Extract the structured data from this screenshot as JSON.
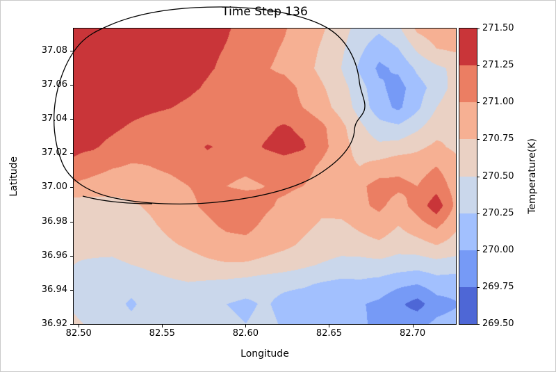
{
  "figure": {
    "title": "Time Step 136",
    "xlabel": "Longitude",
    "ylabel": "Latitude",
    "colorbar_label": "Temperature(K)"
  },
  "chart_data": {
    "type": "heatmap",
    "title": "Time Step 136",
    "xlabel": "Longitude",
    "ylabel": "Latitude",
    "colorbar_label": "Temperature(K)",
    "x_range": [
      82.497,
      82.726
    ],
    "y_range": [
      36.92,
      37.093
    ],
    "x_ticks": [
      "82.50",
      "82.55",
      "82.60",
      "82.65",
      "82.70"
    ],
    "x_tick_values": [
      82.5,
      82.55,
      82.6,
      82.65,
      82.7
    ],
    "y_ticks": [
      "37.08",
      "37.06",
      "37.04",
      "37.02",
      "37.00",
      "36.98",
      "36.96",
      "36.94",
      "36.92"
    ],
    "y_tick_values": [
      37.08,
      37.06,
      37.04,
      37.02,
      37.0,
      36.98,
      36.96,
      36.94,
      36.92
    ],
    "levels": [
      269.5,
      269.75,
      270.0,
      270.25,
      270.5,
      270.75,
      271.0,
      271.25,
      271.5
    ],
    "colorbar_ticks": [
      "271.50",
      "271.25",
      "271.00",
      "270.75",
      "270.50",
      "270.25",
      "270.00",
      "269.75",
      "269.50"
    ],
    "colormap_name": "coolwarm (discrete, 8 bins, low to high)",
    "colormap": [
      "#4E67D6",
      "#769AF6",
      "#A2C0FE",
      "#CAD7EB",
      "#EAD1C4",
      "#F6B093",
      "#EB7E63",
      "#C93539"
    ],
    "contour_line": {
      "color": "#000000",
      "description": "single closed black contour encircling the warm region in the upper-left, extending above the plot frame"
    },
    "grid": {
      "lon": [
        82.497,
        82.508,
        82.52,
        82.531,
        82.543,
        82.554,
        82.566,
        82.577,
        82.589,
        82.6,
        82.612,
        82.623,
        82.634,
        82.646,
        82.657,
        82.669,
        82.68,
        82.692,
        82.703,
        82.715,
        82.726
      ],
      "lat": [
        37.093,
        37.081,
        37.07,
        37.058,
        37.047,
        37.035,
        37.024,
        37.012,
        37.001,
        36.989,
        36.978,
        36.966,
        36.955,
        36.943,
        36.932,
        36.92
      ],
      "temperature": [
        [
          271.42,
          271.45,
          271.44,
          271.42,
          271.4,
          271.37,
          271.33,
          271.3,
          271.27,
          271.18,
          271.1,
          271.02,
          270.9,
          270.78,
          270.6,
          270.4,
          270.3,
          270.45,
          270.8,
          270.9,
          270.85
        ],
        [
          271.44,
          271.47,
          271.45,
          271.43,
          271.41,
          271.38,
          271.34,
          271.3,
          271.24,
          271.14,
          271.06,
          270.98,
          270.88,
          270.72,
          270.55,
          270.3,
          270.1,
          270.25,
          270.55,
          270.75,
          270.8
        ],
        [
          271.4,
          271.44,
          271.43,
          271.41,
          271.39,
          271.36,
          271.32,
          271.28,
          271.2,
          271.1,
          271.02,
          270.95,
          270.85,
          270.68,
          270.5,
          270.2,
          269.95,
          270.05,
          270.3,
          270.45,
          270.55
        ],
        [
          271.38,
          271.42,
          271.41,
          271.4,
          271.38,
          271.35,
          271.3,
          271.22,
          271.12,
          271.05,
          271.08,
          271.1,
          270.95,
          270.78,
          270.6,
          270.35,
          270.05,
          269.9,
          270.15,
          270.35,
          270.6
        ],
        [
          271.36,
          271.4,
          271.38,
          271.34,
          271.3,
          271.26,
          271.2,
          271.12,
          271.05,
          271.08,
          271.12,
          271.08,
          271.0,
          270.85,
          270.65,
          270.4,
          270.1,
          269.95,
          270.2,
          270.5,
          270.7
        ],
        [
          271.34,
          271.36,
          271.3,
          271.22,
          271.15,
          271.1,
          271.08,
          271.1,
          271.05,
          271.1,
          271.2,
          271.28,
          271.2,
          271.05,
          270.82,
          270.55,
          270.35,
          270.3,
          270.45,
          270.65,
          270.75
        ],
        [
          271.3,
          271.28,
          271.18,
          271.1,
          271.05,
          271.08,
          271.15,
          271.27,
          271.2,
          271.15,
          271.27,
          271.33,
          271.28,
          271.08,
          270.85,
          270.65,
          270.55,
          270.6,
          270.7,
          270.8,
          270.7
        ],
        [
          271.2,
          271.1,
          271.02,
          270.98,
          271.0,
          271.05,
          271.12,
          271.15,
          271.08,
          271.05,
          271.1,
          271.15,
          271.1,
          270.95,
          270.82,
          270.75,
          270.85,
          270.95,
          270.9,
          271.0,
          270.85
        ],
        [
          270.95,
          270.9,
          270.85,
          270.85,
          270.88,
          270.92,
          271.0,
          271.05,
          271.0,
          270.95,
          271.0,
          271.05,
          271.0,
          270.9,
          270.85,
          270.95,
          271.1,
          271.05,
          271.0,
          271.15,
          270.9
        ],
        [
          270.6,
          270.62,
          270.66,
          270.72,
          270.78,
          270.85,
          270.95,
          271.05,
          271.15,
          271.18,
          271.05,
          270.95,
          270.88,
          270.8,
          270.85,
          270.95,
          271.05,
          270.9,
          271.1,
          271.4,
          270.95
        ],
        [
          270.55,
          270.58,
          270.6,
          270.66,
          270.72,
          270.8,
          270.88,
          270.95,
          271.05,
          271.08,
          270.95,
          270.85,
          270.8,
          270.72,
          270.7,
          270.8,
          270.9,
          270.75,
          270.9,
          271.05,
          270.8
        ],
        [
          270.52,
          270.54,
          270.56,
          270.6,
          270.65,
          270.72,
          270.78,
          270.85,
          270.9,
          270.92,
          270.85,
          270.8,
          270.72,
          270.65,
          270.6,
          270.65,
          270.7,
          270.6,
          270.65,
          270.75,
          270.65
        ],
        [
          270.5,
          270.48,
          270.46,
          270.5,
          270.55,
          270.6,
          270.65,
          270.7,
          270.73,
          270.72,
          270.68,
          270.62,
          270.55,
          270.48,
          270.42,
          270.4,
          270.42,
          270.38,
          270.35,
          270.4,
          270.38
        ],
        [
          270.46,
          270.42,
          270.35,
          270.32,
          270.4,
          270.45,
          270.48,
          270.45,
          270.42,
          270.38,
          270.32,
          270.3,
          270.28,
          270.22,
          270.18,
          270.2,
          270.15,
          270.05,
          270.0,
          270.12,
          270.1
        ],
        [
          270.48,
          270.44,
          270.32,
          270.22,
          270.32,
          270.42,
          270.4,
          270.32,
          270.25,
          270.2,
          270.28,
          270.18,
          270.12,
          270.15,
          270.08,
          270.02,
          269.95,
          269.8,
          269.65,
          269.9,
          269.98
        ],
        [
          270.52,
          270.48,
          270.4,
          270.3,
          270.38,
          270.45,
          270.42,
          270.35,
          270.3,
          270.25,
          270.32,
          270.22,
          270.18,
          270.22,
          270.12,
          270.05,
          269.92,
          269.85,
          269.92,
          270.05,
          270.08
        ]
      ]
    }
  }
}
